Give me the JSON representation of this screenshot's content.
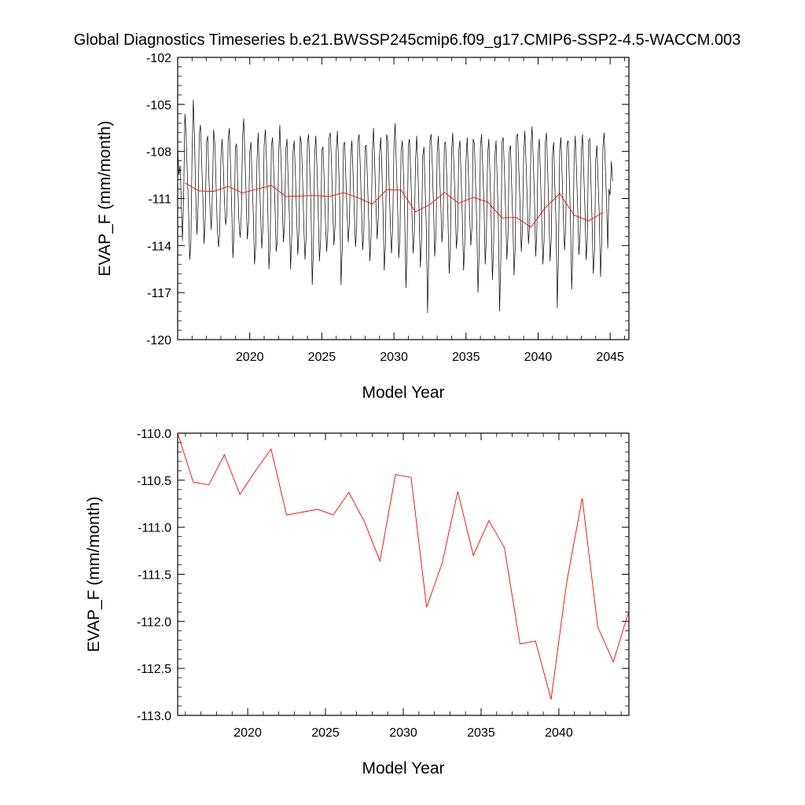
{
  "title": "Global Diagnostics Timeseries b.e21.BWSSP245cmip6.f09_g17.CMIP6-SSP2-4.5-WACCM.003",
  "chart_data": [
    {
      "type": "line",
      "xlabel": "Model Year",
      "ylabel": "EVAP_F (mm/month)",
      "xlim": [
        2015.0,
        2046.3
      ],
      "ylim": [
        -120,
        -102
      ],
      "x_ticks": [
        "2020",
        "2025",
        "2030",
        "2035",
        "2040",
        "2045"
      ],
      "y_ticks": [
        "-102",
        "-105",
        "-108",
        "-111",
        "-114",
        "-117",
        "-120"
      ],
      "monthly_colors": {
        "monthly": "#000000",
        "annual": "#ff0000"
      },
      "series": [
        {
          "role": "monthly",
          "x_start": 2015.0,
          "x_step": 0.08333,
          "values": [
            -107.7,
            -109.5,
            -108.9,
            -111.2,
            -113.7,
            -110.9,
            -105.6,
            -106.8,
            -109.3,
            -111.6,
            -114.9,
            -113.8,
            -108.2,
            -104.7,
            -107.1,
            -110.6,
            -113.3,
            -111.4,
            -106.9,
            -106.3,
            -108.7,
            -111.1,
            -113.9,
            -112.3,
            -107.4,
            -107.0,
            -109.6,
            -111.8,
            -113.0,
            -110.5,
            -106.6,
            -107.6,
            -110.2,
            -112.9,
            -114.1,
            -113.2,
            -108.4,
            -107.2,
            -109.0,
            -111.3,
            -112.7,
            -111.9,
            -107.3,
            -106.5,
            -108.9,
            -111.7,
            -114.8,
            -113.1,
            -107.8,
            -107.5,
            -110.1,
            -112.4,
            -113.5,
            -112.0,
            -107.1,
            -105.9,
            -108.3,
            -110.9,
            -113.6,
            -112.5,
            -108.0,
            -107.4,
            -109.8,
            -112.2,
            -115.2,
            -114.0,
            -108.6,
            -106.8,
            -109.4,
            -111.8,
            -114.2,
            -112.8,
            -107.6,
            -106.6,
            -108.8,
            -111.5,
            -115.5,
            -113.9,
            -107.7,
            -107.1,
            -109.3,
            -111.4,
            -114.4,
            -113.7,
            -108.3,
            -106.3,
            -108.5,
            -111.0,
            -113.8,
            -112.6,
            -107.9,
            -107.2,
            -109.9,
            -112.1,
            -115.5,
            -113.3,
            -108.1,
            -107.3,
            -109.5,
            -112.0,
            -114.6,
            -113.0,
            -107.0,
            -107.5,
            -109.7,
            -112.8,
            -114.9,
            -113.4,
            -107.5,
            -106.9,
            -109.2,
            -111.6,
            -116.5,
            -114.3,
            -108.2,
            -107.0,
            -109.1,
            -111.9,
            -115.0,
            -113.6,
            -107.9,
            -107.7,
            -110.0,
            -112.5,
            -114.4,
            -113.1,
            -107.2,
            -106.8,
            -108.6,
            -111.3,
            -114.0,
            -112.8,
            -108.0,
            -106.7,
            -108.9,
            -111.4,
            -116.5,
            -114.1,
            -107.6,
            -107.4,
            -109.6,
            -111.9,
            -113.8,
            -112.5,
            -108.4,
            -107.3,
            -109.4,
            -111.7,
            -114.1,
            -112.9,
            -107.4,
            -106.9,
            -109.0,
            -111.5,
            -114.3,
            -113.0,
            -107.7,
            -107.6,
            -109.8,
            -112.3,
            -115.0,
            -113.4,
            -108.1,
            -106.5,
            -108.7,
            -111.2,
            -113.6,
            -112.2,
            -108.2,
            -107.1,
            -109.1,
            -111.9,
            -115.6,
            -113.8,
            -106.9,
            -107.4,
            -110.0,
            -112.6,
            -114.5,
            -112.9,
            -107.8,
            -106.2,
            -108.8,
            -111.3,
            -114.8,
            -113.5,
            -108.0,
            -107.3,
            -109.5,
            -112.1,
            -116.7,
            -114.0,
            -107.6,
            -107.2,
            -109.4,
            -111.8,
            -114.5,
            -113.2,
            -108.5,
            -107.0,
            -109.2,
            -112.0,
            -115.4,
            -113.7,
            -108.3,
            -107.7,
            -110.3,
            -112.9,
            -118.3,
            -114.6,
            -107.3,
            -106.9,
            -109.0,
            -111.6,
            -114.7,
            -113.3,
            -108.1,
            -107.0,
            -109.3,
            -111.4,
            -113.8,
            -112.5,
            -107.5,
            -107.4,
            -109.6,
            -112.2,
            -115.8,
            -114.1,
            -108.0,
            -106.8,
            -109.1,
            -111.2,
            -114.2,
            -113.1,
            -107.9,
            -107.3,
            -109.7,
            -112.4,
            -115.6,
            -113.9,
            -108.6,
            -107.1,
            -109.4,
            -111.9,
            -114.0,
            -112.8,
            -107.2,
            -107.5,
            -110.1,
            -112.7,
            -117.0,
            -114.4,
            -107.7,
            -106.9,
            -109.2,
            -111.5,
            -115.2,
            -113.6,
            -108.2,
            -107.2,
            -109.5,
            -112.3,
            -116.2,
            -114.0,
            -108.4,
            -107.3,
            -109.8,
            -112.6,
            -118.2,
            -114.8,
            -107.4,
            -107.1,
            -109.3,
            -111.8,
            -114.9,
            -113.4,
            -108.0,
            -107.6,
            -110.0,
            -112.5,
            -115.9,
            -114.2,
            -107.0,
            -106.9,
            -109.1,
            -111.4,
            -114.4,
            -113.0,
            -108.3,
            -106.7,
            -108.8,
            -111.2,
            -113.9,
            -112.6,
            -107.8,
            -106.4,
            -108.5,
            -111.0,
            -114.7,
            -113.1,
            -108.1,
            -107.2,
            -109.6,
            -112.1,
            -115.2,
            -113.7,
            -107.5,
            -106.8,
            -109.2,
            -111.9,
            -115.0,
            -113.5,
            -108.2,
            -107.4,
            -110.2,
            -112.8,
            -118.0,
            -114.6,
            -107.9,
            -107.1,
            -109.4,
            -112.0,
            -114.3,
            -112.9,
            -107.6,
            -107.3,
            -109.7,
            -112.4,
            -116.8,
            -114.2,
            -108.4,
            -107.0,
            -109.1,
            -111.7,
            -114.6,
            -113.2,
            -108.0,
            -106.9,
            -109.3,
            -111.5,
            -114.9,
            -113.6,
            -107.3,
            -107.2,
            -109.9,
            -112.6,
            -115.8,
            -114.3,
            -108.5,
            -107.6,
            -110.0,
            -112.2,
            -116.0,
            -113.8,
            -107.7,
            -106.8,
            -109.0,
            -111.3,
            -114.2,
            -110.4,
            -110.8,
            -108.6,
            -109.9
          ]
        },
        {
          "role": "annual",
          "x": [
            2015.5,
            2016.5,
            2017.5,
            2018.5,
            2019.5,
            2020.5,
            2021.5,
            2022.5,
            2023.5,
            2024.5,
            2025.5,
            2026.5,
            2027.5,
            2028.5,
            2029.5,
            2030.5,
            2031.5,
            2032.5,
            2033.5,
            2034.5,
            2035.5,
            2036.5,
            2037.5,
            2038.5,
            2039.5,
            2040.5,
            2041.5,
            2042.5,
            2043.5,
            2044.5
          ],
          "values": [
            -110.0,
            -110.52,
            -110.55,
            -110.23,
            -110.65,
            -110.4,
            -110.17,
            -110.87,
            -110.84,
            -110.81,
            -110.87,
            -110.63,
            -110.94,
            -111.36,
            -110.44,
            -110.47,
            -111.85,
            -111.38,
            -110.62,
            -111.3,
            -110.93,
            -111.22,
            -112.24,
            -112.21,
            -112.83,
            -111.59,
            -110.69,
            -112.06,
            -112.43,
            -111.89
          ]
        }
      ]
    },
    {
      "type": "line",
      "xlabel": "Model Year",
      "ylabel": "EVAP_F (mm/month)",
      "xlim": [
        2015.5,
        2044.5
      ],
      "ylim": [
        -113.0,
        -110.0
      ],
      "x_ticks": [
        "2020",
        "2025",
        "2030",
        "2035",
        "2040"
      ],
      "y_ticks": [
        "-110.0",
        "-110.5",
        "-111.0",
        "-111.5",
        "-112.0",
        "-112.5",
        "-113.0"
      ],
      "series": [
        {
          "role": "annual",
          "color": "#ff0000",
          "x": [
            2015.5,
            2016.5,
            2017.5,
            2018.5,
            2019.5,
            2020.5,
            2021.5,
            2022.5,
            2023.5,
            2024.5,
            2025.5,
            2026.5,
            2027.5,
            2028.5,
            2029.5,
            2030.5,
            2031.5,
            2032.5,
            2033.5,
            2034.5,
            2035.5,
            2036.5,
            2037.5,
            2038.5,
            2039.5,
            2040.5,
            2041.5,
            2042.5,
            2043.5,
            2044.5
          ],
          "values": [
            -110.0,
            -110.52,
            -110.55,
            -110.23,
            -110.65,
            -110.4,
            -110.17,
            -110.87,
            -110.84,
            -110.81,
            -110.87,
            -110.63,
            -110.94,
            -111.36,
            -110.44,
            -110.47,
            -111.85,
            -111.38,
            -110.62,
            -111.3,
            -110.93,
            -111.22,
            -112.24,
            -112.21,
            -112.83,
            -111.59,
            -110.69,
            -112.06,
            -112.43,
            -111.89
          ]
        }
      ]
    }
  ]
}
